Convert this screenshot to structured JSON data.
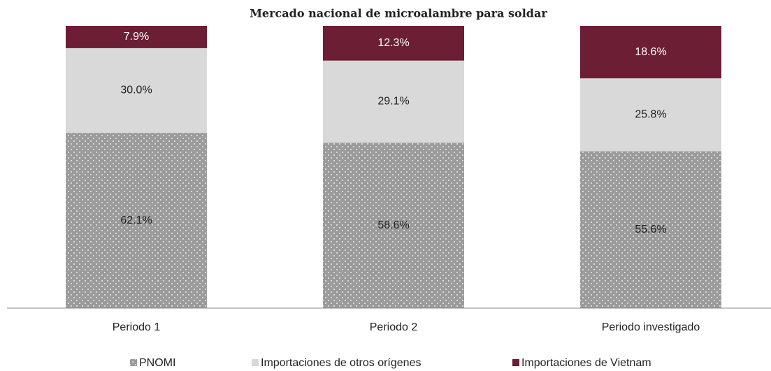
{
  "chart_data": {
    "type": "stacked_bar",
    "title": "Mercado nacional de microalambre para soldar",
    "categories": [
      "Periodo 1",
      "Periodo 2",
      "Periodo investigado"
    ],
    "ylim": [
      0,
      100
    ],
    "legend": "bottom",
    "series": [
      {
        "name": "PNOMI",
        "color": "#9b9b9b",
        "pattern": "dots",
        "values": [
          62.1,
          58.6,
          55.6
        ],
        "value_labels": [
          "62.1%",
          "58.6%",
          "55.6%"
        ]
      },
      {
        "name": "Importaciones de otros orígenes",
        "color": "#d9d9d9",
        "values": [
          30.0,
          29.1,
          25.8
        ],
        "value_labels": [
          "30.0%",
          "29.1%",
          "25.8%"
        ]
      },
      {
        "name": "Importaciones de Vietnam",
        "color": "#6b1e34",
        "values": [
          7.9,
          12.3,
          18.6
        ],
        "value_labels": [
          "7.9%",
          "12.3%",
          "18.6%"
        ]
      }
    ]
  }
}
